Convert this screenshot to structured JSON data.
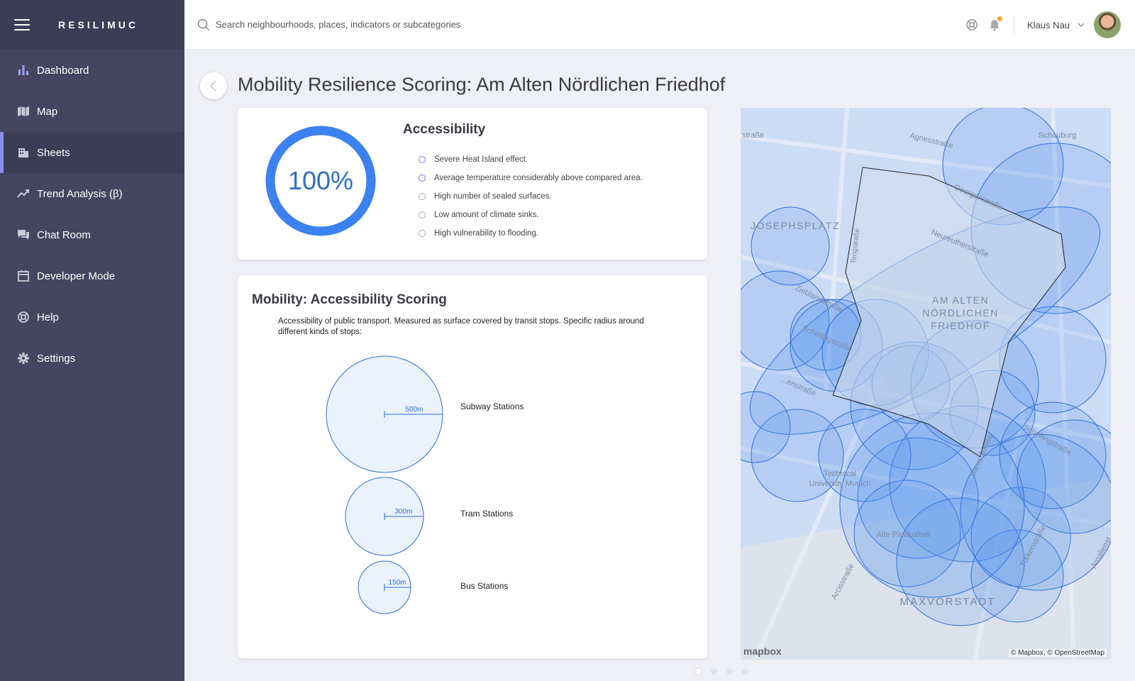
{
  "app": {
    "brand": "RESILIMUC"
  },
  "sidebar": {
    "items": [
      {
        "label": "Dashboard",
        "icon": "bar-chart-icon"
      },
      {
        "label": "Map",
        "icon": "map-icon"
      },
      {
        "label": "Sheets",
        "icon": "building-icon",
        "active": true
      },
      {
        "label": "Trend Analysis (β)",
        "icon": "trend-icon"
      },
      {
        "label": "Chat Room",
        "icon": "chat-icon"
      },
      {
        "label": "Developer Mode",
        "icon": "calendar-icon"
      },
      {
        "label": "Help",
        "icon": "globe-icon"
      },
      {
        "label": "Settings",
        "icon": "gear-icon"
      }
    ]
  },
  "search": {
    "placeholder": "Search neighbourhoods, places, indicators or subcategories"
  },
  "user": {
    "name": "Klaus Nau"
  },
  "page": {
    "title": "Mobility Resilience Scoring: Am Alten Nördlichen Friedhof"
  },
  "accessibility": {
    "title": "Accessibility",
    "score_label": "100%",
    "score": 1.0,
    "criteria": [
      {
        "text": "Severe Heat Island effect.",
        "active": true
      },
      {
        "text": "Average temperature considerably above compared area.",
        "active": true
      },
      {
        "text": "High number of sealed surfaces.",
        "active": false
      },
      {
        "text": "Low amount of climate sinks.",
        "active": false
      },
      {
        "text": "High vulnerability to flooding.",
        "active": false
      }
    ]
  },
  "mobility": {
    "title": "Mobility: Accessibility Scoring",
    "description": "Accessibility of public transport. Measured as surface covered by transit stops. Specific radius around different kinds of stops:",
    "stops": [
      {
        "label": "Subway Stations",
        "radius_label": "500m"
      },
      {
        "label": "Tram Stations",
        "radius_label": "300m"
      },
      {
        "label": "Bus Stations",
        "radius_label": "150m"
      }
    ]
  },
  "map": {
    "labels": {
      "josephsplatz": "JOSEPHSPLATZ",
      "area_line1": "AM ALTEN",
      "area_line2": "NÖRDLICHEN",
      "area_line3": "FRIEDHOF",
      "maxvorstadt": "MAXVORSTADT",
      "schauburg": "Schauburg",
      "agnesstrasse": "Agnesstraße",
      "strasse": "straße",
      "neureutherstrasse": "Neureutherstraße",
      "zieblandstrasse": "Zieblandstraße",
      "schellingstrasse": "Schellingstraße",
      "schellingstrasse2": "Schellingstraße",
      "tum1": "Technical",
      "tum2": "University Munich",
      "pinakothek": "Alte Pinakothek",
      "arcisstrasse": "Arcisstraße",
      "barerstrasse": "Barer Straße",
      "tuerkenstrasse": "Türkenstraße",
      "amalienstrasse": "Amalienst",
      "theresienstrasse": "...enstraße",
      "georgenstrasse": "Georgenstraße",
      "tengstrasse": "Tengstraße"
    },
    "attribution": "© Mapbox, © OpenStreetMap",
    "logo": "mapbox"
  },
  "pager": {
    "count": 4,
    "active": 0
  },
  "colors": {
    "sidebar": "#46455f",
    "accent": "#8b8ee8",
    "ring": "#3b82f0",
    "circle_stroke": "#2f6fdb"
  }
}
